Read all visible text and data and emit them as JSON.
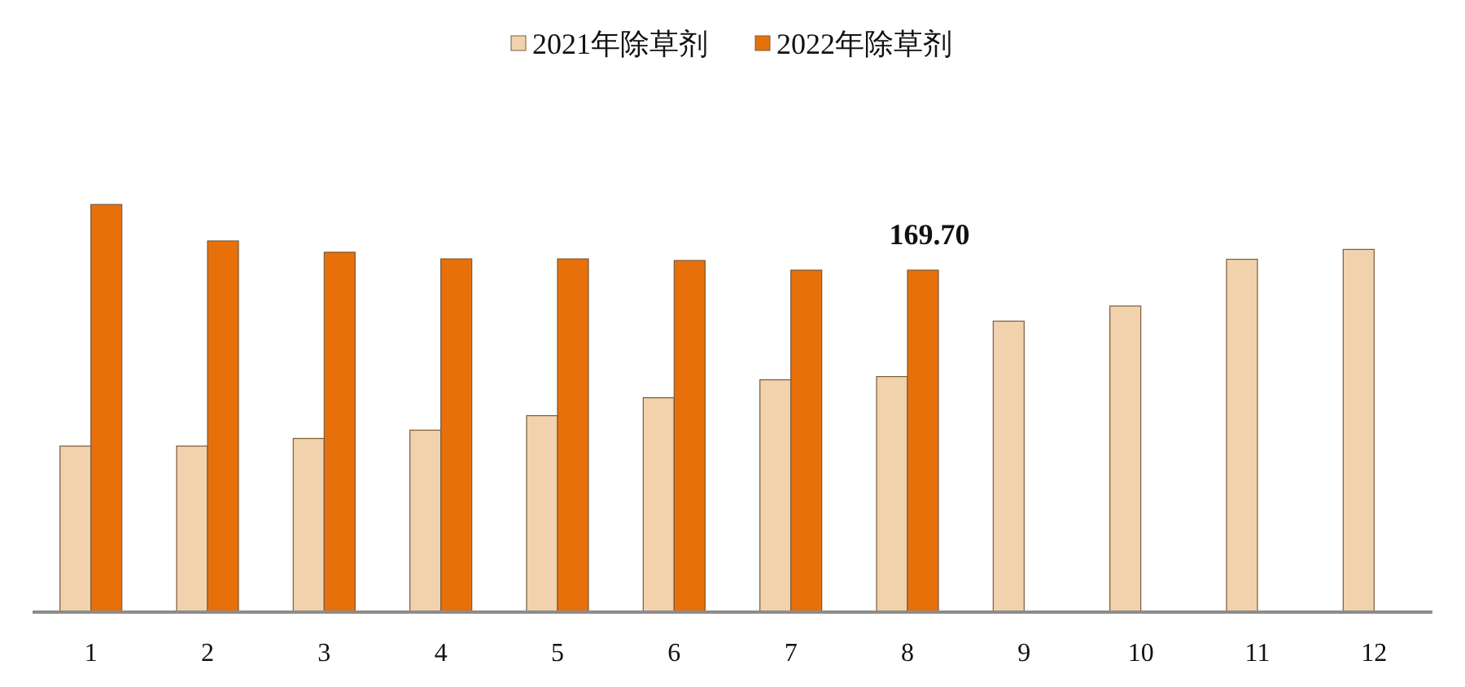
{
  "chart_data": {
    "type": "bar",
    "categories": [
      "1",
      "2",
      "3",
      "4",
      "5",
      "6",
      "7",
      "8",
      "9",
      "10",
      "11",
      "12"
    ],
    "series": [
      {
        "name": "2021年除草剂",
        "color": "#f2d2ac",
        "values": [
          82.4,
          82.4,
          86.2,
          90.3,
          97.5,
          106.4,
          115.3,
          116.9,
          144.4,
          151.9,
          175.1,
          180.0
        ]
      },
      {
        "name": "2022年除草剂",
        "color": "#e8700a",
        "values": [
          202.3,
          184.2,
          178.6,
          175.3,
          175.3,
          174.5,
          169.7,
          169.7,
          null,
          null,
          null,
          null
        ],
        "value_labels": [
          null,
          null,
          null,
          null,
          null,
          null,
          null,
          "169.70",
          null,
          null,
          null,
          null
        ]
      }
    ],
    "legend": "top",
    "grid": false
  }
}
